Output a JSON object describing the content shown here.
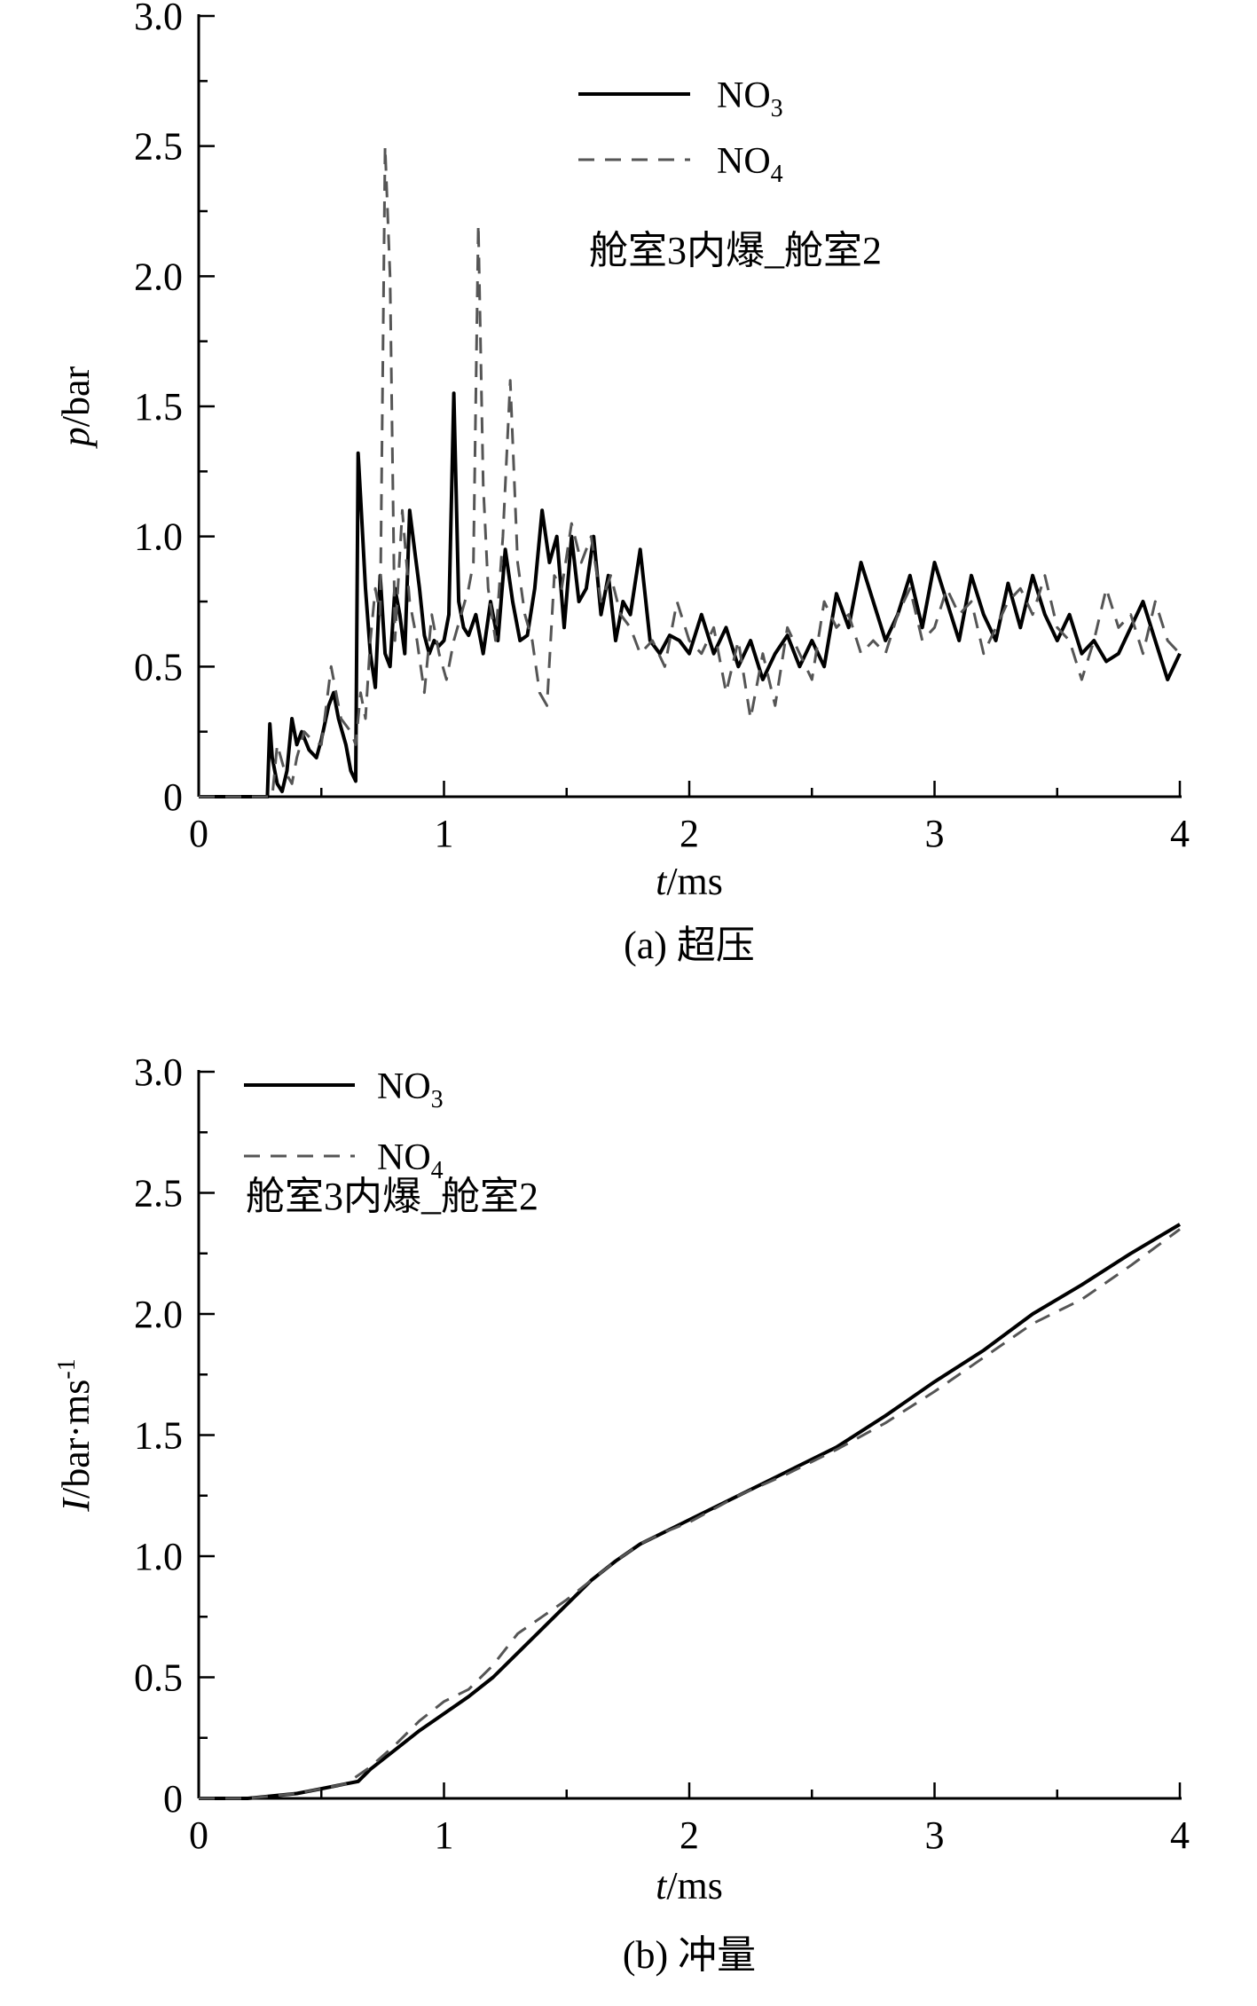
{
  "chart_data": [
    {
      "type": "line",
      "caption": "(a) 超压",
      "annotation": "舱室3内爆_舱室2",
      "xlabel": {
        "var": "t",
        "unit": "/ms"
      },
      "ylabel": {
        "var": "p",
        "unit": "/bar"
      },
      "xlim": [
        0,
        4
      ],
      "ylim": [
        0,
        3.0
      ],
      "xticks": [
        "0",
        "1",
        "2",
        "3",
        "4"
      ],
      "yticks": [
        "0",
        "0.5",
        "1.0",
        "1.5",
        "2.0",
        "2.5",
        "3.0"
      ],
      "legend": {
        "position": "top-right"
      },
      "series": [
        {
          "name": "NO3",
          "name_main": "NO",
          "name_sub": "3",
          "color": "#000000",
          "dash": "solid",
          "x": [
            0,
            0.28,
            0.29,
            0.3,
            0.32,
            0.34,
            0.36,
            0.38,
            0.4,
            0.42,
            0.45,
            0.48,
            0.5,
            0.53,
            0.55,
            0.57,
            0.6,
            0.62,
            0.64,
            0.65,
            0.66,
            0.68,
            0.7,
            0.72,
            0.74,
            0.76,
            0.78,
            0.8,
            0.82,
            0.84,
            0.86,
            0.88,
            0.9,
            0.92,
            0.94,
            0.96,
            0.98,
            1.0,
            1.02,
            1.04,
            1.06,
            1.08,
            1.1,
            1.13,
            1.16,
            1.19,
            1.22,
            1.25,
            1.28,
            1.31,
            1.34,
            1.37,
            1.4,
            1.43,
            1.46,
            1.49,
            1.52,
            1.55,
            1.58,
            1.61,
            1.64,
            1.67,
            1.7,
            1.73,
            1.76,
            1.8,
            1.84,
            1.88,
            1.92,
            1.96,
            2.0,
            2.05,
            2.1,
            2.15,
            2.2,
            2.25,
            2.3,
            2.35,
            2.4,
            2.45,
            2.5,
            2.55,
            2.6,
            2.65,
            2.7,
            2.75,
            2.8,
            2.85,
            2.9,
            2.95,
            3.0,
            3.05,
            3.1,
            3.15,
            3.2,
            3.25,
            3.3,
            3.35,
            3.4,
            3.45,
            3.5,
            3.55,
            3.6,
            3.65,
            3.7,
            3.75,
            3.8,
            3.85,
            3.9,
            3.95,
            4.0
          ],
          "y": [
            0,
            0,
            0.28,
            0.15,
            0.05,
            0.02,
            0.1,
            0.3,
            0.2,
            0.25,
            0.18,
            0.15,
            0.22,
            0.35,
            0.4,
            0.3,
            0.2,
            0.1,
            0.06,
            1.32,
            1.15,
            0.8,
            0.55,
            0.42,
            0.85,
            0.55,
            0.5,
            0.8,
            0.7,
            0.55,
            1.1,
            0.95,
            0.8,
            0.62,
            0.55,
            0.6,
            0.58,
            0.6,
            0.7,
            1.55,
            0.75,
            0.65,
            0.62,
            0.7,
            0.55,
            0.75,
            0.6,
            0.95,
            0.75,
            0.6,
            0.62,
            0.8,
            1.1,
            0.9,
            1.0,
            0.65,
            1.0,
            0.75,
            0.8,
            1.0,
            0.7,
            0.85,
            0.6,
            0.75,
            0.7,
            0.95,
            0.6,
            0.55,
            0.62,
            0.6,
            0.55,
            0.7,
            0.55,
            0.65,
            0.5,
            0.6,
            0.45,
            0.55,
            0.62,
            0.5,
            0.6,
            0.5,
            0.78,
            0.65,
            0.9,
            0.75,
            0.6,
            0.7,
            0.85,
            0.65,
            0.9,
            0.75,
            0.6,
            0.85,
            0.7,
            0.6,
            0.82,
            0.65,
            0.85,
            0.7,
            0.6,
            0.7,
            0.55,
            0.6,
            0.52,
            0.55,
            0.65,
            0.75,
            0.6,
            0.45,
            0.55
          ]
        },
        {
          "name": "NO4",
          "name_main": "NO",
          "name_sub": "4",
          "color": "#555555",
          "dash": "dashed",
          "x": [
            0,
            0.3,
            0.32,
            0.35,
            0.38,
            0.4,
            0.43,
            0.46,
            0.5,
            0.54,
            0.58,
            0.62,
            0.64,
            0.66,
            0.68,
            0.7,
            0.72,
            0.74,
            0.76,
            0.78,
            0.8,
            0.83,
            0.86,
            0.89,
            0.92,
            0.95,
            0.98,
            1.01,
            1.04,
            1.07,
            1.1,
            1.12,
            1.14,
            1.16,
            1.18,
            1.21,
            1.24,
            1.27,
            1.3,
            1.33,
            1.36,
            1.39,
            1.42,
            1.45,
            1.48,
            1.52,
            1.56,
            1.6,
            1.64,
            1.68,
            1.72,
            1.76,
            1.8,
            1.85,
            1.9,
            1.95,
            2.0,
            2.05,
            2.1,
            2.15,
            2.2,
            2.25,
            2.3,
            2.35,
            2.4,
            2.45,
            2.5,
            2.55,
            2.6,
            2.65,
            2.7,
            2.75,
            2.8,
            2.85,
            2.9,
            2.95,
            3.0,
            3.05,
            3.1,
            3.15,
            3.2,
            3.25,
            3.3,
            3.35,
            3.4,
            3.45,
            3.5,
            3.55,
            3.6,
            3.65,
            3.7,
            3.75,
            3.8,
            3.85,
            3.9,
            3.95,
            4.0
          ],
          "y": [
            0,
            0,
            0.2,
            0.1,
            0.05,
            0.15,
            0.25,
            0.22,
            0.2,
            0.5,
            0.3,
            0.25,
            0.2,
            0.4,
            0.3,
            0.6,
            0.8,
            0.7,
            2.5,
            2.0,
            0.6,
            1.1,
            0.75,
            0.6,
            0.4,
            0.7,
            0.55,
            0.45,
            0.6,
            0.7,
            0.8,
            0.9,
            2.2,
            1.2,
            0.8,
            0.6,
            1.0,
            1.6,
            0.9,
            0.7,
            0.6,
            0.4,
            0.35,
            0.85,
            0.8,
            1.05,
            0.9,
            1.0,
            0.75,
            0.85,
            0.7,
            0.65,
            0.55,
            0.6,
            0.5,
            0.75,
            0.6,
            0.55,
            0.65,
            0.4,
            0.6,
            0.3,
            0.55,
            0.35,
            0.65,
            0.55,
            0.45,
            0.75,
            0.65,
            0.7,
            0.55,
            0.6,
            0.55,
            0.7,
            0.8,
            0.6,
            0.65,
            0.8,
            0.7,
            0.75,
            0.55,
            0.65,
            0.75,
            0.8,
            0.7,
            0.85,
            0.65,
            0.6,
            0.45,
            0.6,
            0.8,
            0.65,
            0.7,
            0.55,
            0.75,
            0.6,
            0.55
          ]
        }
      ]
    },
    {
      "type": "line",
      "caption": "(b) 冲量",
      "annotation": "舱室3内爆_舱室2",
      "xlabel": {
        "var": "t",
        "unit": "/ms"
      },
      "ylabel": {
        "var": "I",
        "unit": "/bar·ms",
        "sup": "-1"
      },
      "xlim": [
        0,
        4
      ],
      "ylim": [
        0,
        3.0
      ],
      "xticks": [
        "0",
        "1",
        "2",
        "3",
        "4"
      ],
      "yticks": [
        "0",
        "0.5",
        "1.0",
        "1.5",
        "2.0",
        "2.5",
        "3.0"
      ],
      "legend": {
        "position": "top-left"
      },
      "series": [
        {
          "name": "NO3",
          "name_main": "NO",
          "name_sub": "3",
          "color": "#000000",
          "dash": "solid",
          "x": [
            0,
            0.2,
            0.3,
            0.4,
            0.5,
            0.6,
            0.65,
            0.7,
            0.8,
            0.9,
            1.0,
            1.1,
            1.2,
            1.3,
            1.4,
            1.5,
            1.6,
            1.7,
            1.8,
            1.9,
            2.0,
            2.2,
            2.4,
            2.6,
            2.8,
            3.0,
            3.2,
            3.4,
            3.6,
            3.8,
            4.0
          ],
          "y": [
            0,
            0,
            0.01,
            0.02,
            0.04,
            0.06,
            0.07,
            0.12,
            0.2,
            0.28,
            0.35,
            0.42,
            0.5,
            0.6,
            0.7,
            0.8,
            0.9,
            0.98,
            1.05,
            1.1,
            1.15,
            1.25,
            1.35,
            1.45,
            1.58,
            1.72,
            1.85,
            2.0,
            2.12,
            2.25,
            2.37
          ]
        },
        {
          "name": "NO4",
          "name_main": "NO",
          "name_sub": "4",
          "color": "#555555",
          "dash": "dashed",
          "x": [
            0,
            0.2,
            0.3,
            0.4,
            0.5,
            0.6,
            0.7,
            0.8,
            0.9,
            1.0,
            1.1,
            1.2,
            1.3,
            1.4,
            1.5,
            1.6,
            1.7,
            1.8,
            1.9,
            2.0,
            2.2,
            2.4,
            2.6,
            2.8,
            3.0,
            3.2,
            3.4,
            3.6,
            3.8,
            4.0
          ],
          "y": [
            0,
            0,
            0.01,
            0.02,
            0.04,
            0.06,
            0.13,
            0.22,
            0.32,
            0.4,
            0.45,
            0.55,
            0.68,
            0.75,
            0.82,
            0.9,
            0.98,
            1.05,
            1.1,
            1.14,
            1.25,
            1.34,
            1.44,
            1.55,
            1.68,
            1.82,
            1.96,
            2.06,
            2.2,
            2.35
          ]
        }
      ]
    }
  ]
}
